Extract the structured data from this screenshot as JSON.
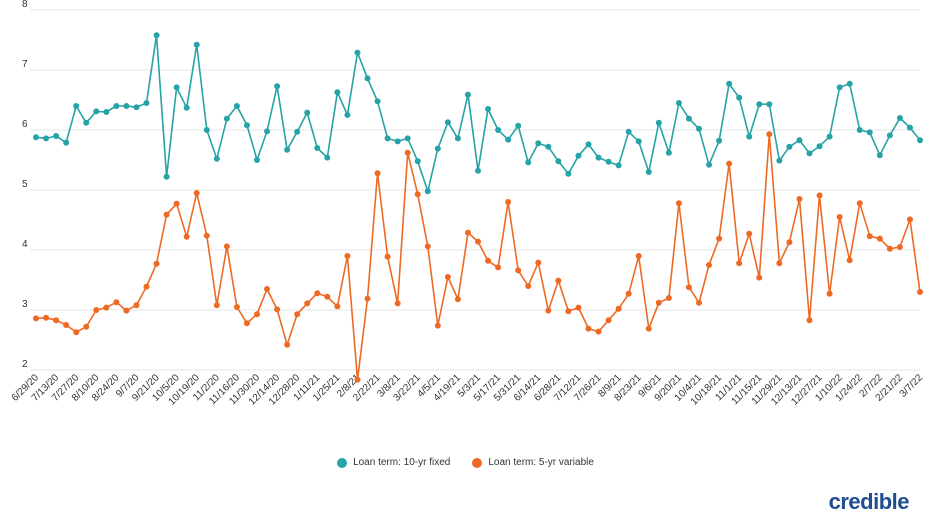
{
  "chart_data": {
    "type": "line",
    "title": "",
    "xlabel": "",
    "ylabel": "",
    "ylim": [
      2,
      8
    ],
    "yticks": [
      2,
      3,
      4,
      5,
      6,
      7,
      8
    ],
    "grid": true,
    "legend_position": "bottom",
    "x_tick_labels": [
      "6/29/20",
      "7/13/20",
      "7/27/20",
      "8/10/20",
      "8/24/20",
      "9/7/20",
      "9/21/20",
      "10/5/20",
      "10/19/20",
      "11/2/20",
      "11/16/20",
      "11/30/20",
      "12/14/20",
      "12/28/20",
      "1/11/21",
      "1/25/21",
      "2/8/21",
      "2/22/21",
      "3/8/21",
      "3/22/21",
      "4/5/21",
      "4/19/21",
      "5/3/21",
      "5/17/21",
      "5/31/21",
      "6/14/21",
      "6/28/21",
      "7/12/21",
      "7/26/21",
      "8/9/21",
      "8/23/21",
      "9/6/21",
      "9/20/21",
      "10/4/21",
      "10/18/21",
      "11/1/21",
      "11/15/21",
      "11/29/21",
      "12/13/21",
      "12/27/21",
      "1/10/22",
      "1/24/22",
      "2/7/22",
      "2/21/22",
      "3/7/22"
    ],
    "x_start": "6/29/20",
    "x_step_days": 7,
    "series": [
      {
        "name": "Loan term: 10-yr fixed",
        "color": "#26a3a6",
        "values": [
          5.88,
          5.86,
          5.9,
          5.79,
          6.4,
          6.12,
          6.31,
          6.3,
          6.4,
          6.4,
          6.38,
          6.45,
          7.58,
          5.22,
          6.71,
          6.37,
          7.42,
          6.0,
          5.52,
          6.19,
          6.4,
          6.08,
          5.5,
          5.98,
          6.73,
          5.67,
          5.97,
          6.29,
          5.7,
          5.54,
          6.63,
          6.25,
          7.29,
          6.86,
          6.48,
          5.86,
          5.81,
          5.86,
          5.48,
          4.98,
          5.69,
          6.13,
          5.86,
          6.59,
          5.32,
          6.35,
          6.0,
          5.84,
          6.07,
          5.46,
          5.78,
          5.72,
          5.48,
          5.27,
          5.57,
          5.76,
          5.54,
          5.47,
          5.41,
          5.97,
          5.81,
          5.3,
          6.12,
          5.62,
          6.45,
          6.19,
          6.02,
          5.42,
          5.82,
          6.77,
          6.54,
          5.89,
          6.43,
          6.43,
          5.49,
          5.72,
          5.83,
          5.61,
          5.73,
          5.89,
          6.71,
          6.77,
          6.0,
          5.96,
          5.58,
          5.91,
          6.2,
          6.04,
          5.83
        ]
      },
      {
        "name": "Loan term: 5-yr variable",
        "color": "#ee6a24",
        "values": [
          2.86,
          2.87,
          2.83,
          2.75,
          2.63,
          2.72,
          3.0,
          3.04,
          3.13,
          2.99,
          3.08,
          3.39,
          3.77,
          4.59,
          4.77,
          4.22,
          4.95,
          4.24,
          3.08,
          4.06,
          3.05,
          2.78,
          2.93,
          3.35,
          3.01,
          2.42,
          2.93,
          3.11,
          3.28,
          3.22,
          3.06,
          3.9,
          1.84,
          3.19,
          5.28,
          3.89,
          3.11,
          5.62,
          4.93,
          4.06,
          2.74,
          3.55,
          3.18,
          4.29,
          4.14,
          3.82,
          3.71,
          4.8,
          3.66,
          3.4,
          3.79,
          2.99,
          3.49,
          2.98,
          3.04,
          2.69,
          2.64,
          2.83,
          3.02,
          3.27,
          3.9,
          2.69,
          3.12,
          3.2,
          4.78,
          3.38,
          3.12,
          3.75,
          4.19,
          5.44,
          3.78,
          4.27,
          3.54,
          5.93,
          3.78,
          4.13,
          4.85,
          2.83,
          4.91,
          3.27,
          4.55,
          3.83,
          4.78,
          4.23,
          4.19,
          4.02,
          4.05,
          4.51,
          3.3
        ]
      }
    ]
  },
  "brand": {
    "logo_text": "credible"
  }
}
